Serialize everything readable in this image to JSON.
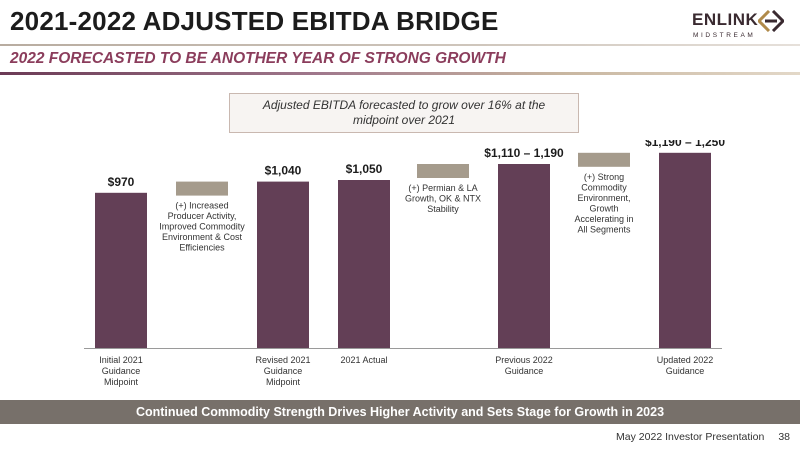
{
  "header": {
    "title": "2021-2022 ADJUSTED EBITDA BRIDGE",
    "subtitle": "2022 FORECASTED TO BE ANOTHER YEAR OF STRONG GROWTH"
  },
  "logo": {
    "word": "ENLINK",
    "sub": "MIDSTREAM"
  },
  "callout": "Adjusted EBITDA forecasted to grow over 16% at the midpoint over 2021",
  "chart_data": {
    "type": "bar",
    "title": "",
    "xlabel": "",
    "ylabel": "",
    "ylim": [
      0,
      1300
    ],
    "grid": false,
    "legend": "none",
    "categories": [
      "Initial 2021 Guidance Midpoint",
      "",
      "Revised 2021 Guidance Midpoint",
      "2021 Actual",
      "",
      "Previous 2022 Guidance",
      "",
      "Updated 2022 Guidance"
    ],
    "bars": [
      {
        "kind": "total",
        "label": "$970",
        "category": "Initial 2021 Guidance Midpoint",
        "value": 970
      },
      {
        "kind": "step",
        "note": "(+) Increased Producer Activity, Improved Commodity Environment & Cost Efficiencies",
        "from": 970,
        "to": 1040
      },
      {
        "kind": "total",
        "label": "$1,040",
        "category": "Revised 2021 Guidance Midpoint",
        "value": 1040
      },
      {
        "kind": "total",
        "label": "$1,050",
        "category": "2021 Actual",
        "value": 1050
      },
      {
        "kind": "step",
        "note": "(+) Permian & LA Growth, OK & NTX Stability",
        "from": 1050,
        "to": 1150
      },
      {
        "kind": "total",
        "label": "$1,110 – 1,190",
        "category": "Previous 2022 Guidance",
        "value": 1150
      },
      {
        "kind": "step",
        "note": "(+) Strong Commodity Environment, Growth Accelerating in All Segments",
        "from": 1150,
        "to": 1220
      },
      {
        "kind": "total",
        "label": "$1,190 – 1,250",
        "category": "Updated 2022 Guidance",
        "value": 1220
      }
    ]
  },
  "colors": {
    "total_bar": "#633f56",
    "step_bar": "#a59b8c",
    "banner": "#77706a",
    "subtitle": "#8b3d5c"
  },
  "banner": "Continued Commodity Strength Drives Higher Activity and Sets Stage for Growth in 2023",
  "footer": {
    "text": "May 2022 Investor Presentation",
    "page": "38"
  }
}
